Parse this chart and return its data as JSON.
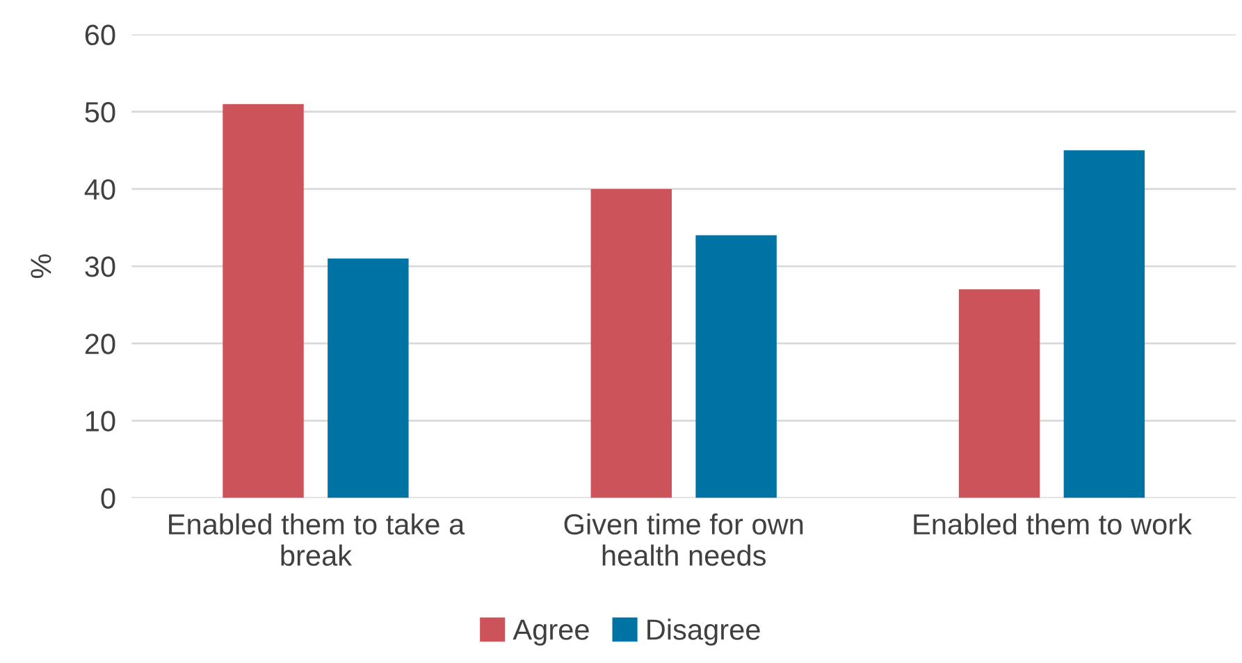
{
  "chart_data": {
    "type": "bar",
    "ylabel": "%",
    "categories": [
      "Enabled them to take a\nbreak",
      "Given time for own\nhealth needs",
      "Enabled them to work"
    ],
    "series": [
      {
        "name": "Agree",
        "color": "#cd535a",
        "values": [
          51,
          40,
          27
        ]
      },
      {
        "name": "Disagree",
        "color": "#0073a5",
        "values": [
          31,
          34,
          45
        ]
      }
    ],
    "ylim": [
      0,
      60
    ],
    "yticks": [
      0,
      10,
      20,
      30,
      40,
      50,
      60
    ],
    "grid": "y",
    "legend": "bottom"
  }
}
